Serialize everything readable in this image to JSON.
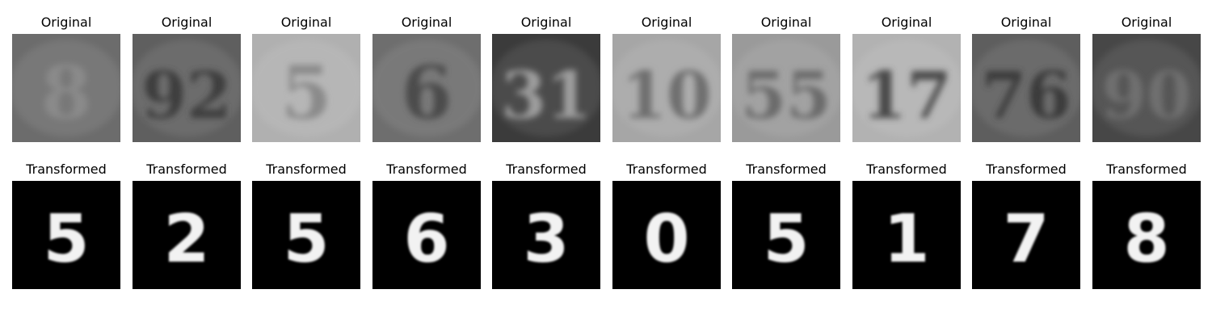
{
  "rows": [
    {
      "name": "original",
      "label": "Original",
      "items": [
        {
          "digit_text": "8",
          "icon": "blurry-house-number-8",
          "bg": "#6c6c6c",
          "fg": "#8a8a8a"
        },
        {
          "digit_text": "92",
          "icon": "blurry-house-number-92",
          "bg": "#5f5f5f",
          "fg": "#3c3c3c"
        },
        {
          "digit_text": "5",
          "icon": "blurry-house-number-5",
          "bg": "#b0b0b0",
          "fg": "#8a8a8a"
        },
        {
          "digit_text": "6",
          "icon": "blurry-house-number-6",
          "bg": "#6e6e6e",
          "fg": "#4b4b4b"
        },
        {
          "digit_text": "31",
          "icon": "house-number-31-plate",
          "bg": "#3b3b3b",
          "fg": "#9e9e9e"
        },
        {
          "digit_text": "10",
          "icon": "blurry-house-number-10",
          "bg": "#a6a6a6",
          "fg": "#6e6e6e"
        },
        {
          "digit_text": "55",
          "icon": "blurry-house-number-55",
          "bg": "#9a9a9a",
          "fg": "#6a6a6a"
        },
        {
          "digit_text": "17",
          "icon": "blurry-house-number-17",
          "bg": "#b2b2b2",
          "fg": "#4a4a4a"
        },
        {
          "digit_text": "76",
          "icon": "blurry-house-number-76",
          "bg": "#5e5e5e",
          "fg": "#3a3a3a"
        },
        {
          "digit_text": "90",
          "icon": "blurry-house-number-90",
          "bg": "#474747",
          "fg": "#6f6f6f"
        }
      ]
    },
    {
      "name": "transformed",
      "label": "Transformed",
      "items": [
        {
          "digit_text": "5",
          "icon": "mnist-style-digit",
          "bg": "#000000",
          "fg": "#f2f2f2"
        },
        {
          "digit_text": "2",
          "icon": "mnist-style-digit",
          "bg": "#000000",
          "fg": "#f2f2f2"
        },
        {
          "digit_text": "5",
          "icon": "mnist-style-digit",
          "bg": "#000000",
          "fg": "#f2f2f2"
        },
        {
          "digit_text": "6",
          "icon": "mnist-style-digit",
          "bg": "#000000",
          "fg": "#f2f2f2"
        },
        {
          "digit_text": "3",
          "icon": "mnist-style-digit",
          "bg": "#000000",
          "fg": "#f2f2f2"
        },
        {
          "digit_text": "0",
          "icon": "mnist-style-digit",
          "bg": "#000000",
          "fg": "#f2f2f2"
        },
        {
          "digit_text": "5",
          "icon": "mnist-style-digit",
          "bg": "#000000",
          "fg": "#f2f2f2"
        },
        {
          "digit_text": "1",
          "icon": "mnist-style-digit",
          "bg": "#000000",
          "fg": "#f2f2f2"
        },
        {
          "digit_text": "7",
          "icon": "mnist-style-digit",
          "bg": "#000000",
          "fg": "#f2f2f2"
        },
        {
          "digit_text": "8",
          "icon": "mnist-style-digit",
          "bg": "#000000",
          "fg": "#f2f2f2"
        }
      ]
    }
  ]
}
